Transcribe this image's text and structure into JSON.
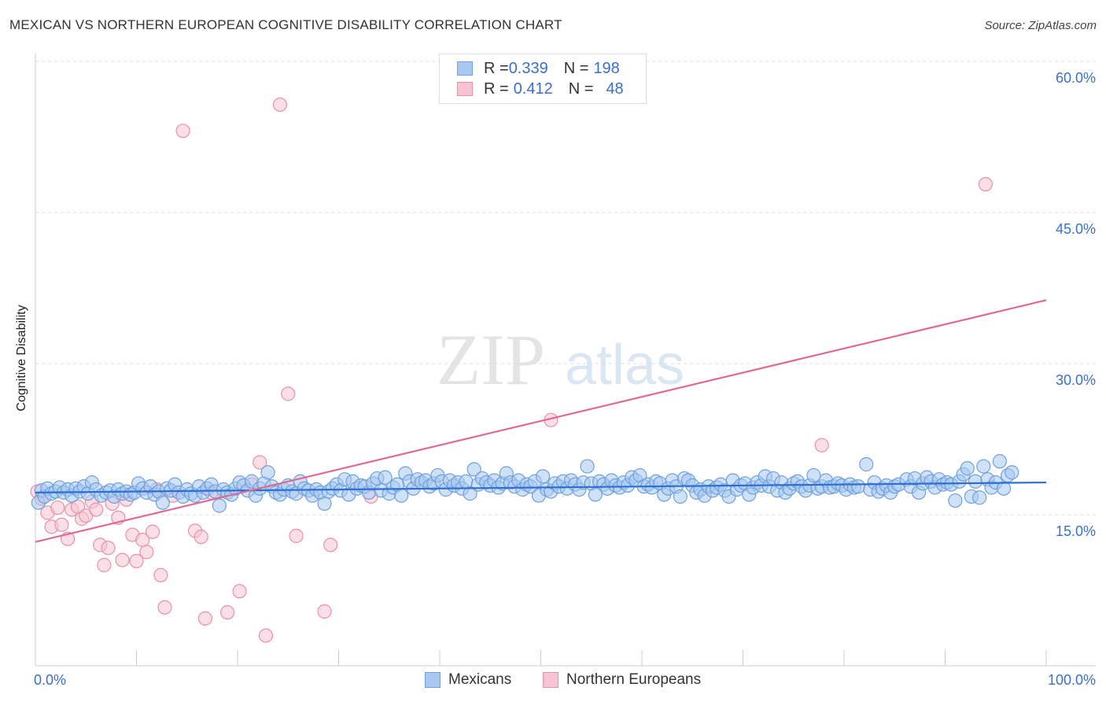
{
  "title": "MEXICAN VS NORTHERN EUROPEAN COGNITIVE DISABILITY CORRELATION CHART",
  "source": "Source: ZipAtlas.com",
  "watermark": {
    "part1": "ZIP",
    "part2": "atlas"
  },
  "legend_top": {
    "rows": [
      {
        "r_label": "R = ",
        "r_value": "0.339",
        "n_label": "N = ",
        "n_value": "198",
        "color": "#a8c8f0"
      },
      {
        "r_label": "R = ",
        "r_value": "0.412",
        "n_label": "N = ",
        "n_value": "48",
        "color": "#f8bccc"
      }
    ]
  },
  "colors": {
    "mexicans_fill": "#a8c8f0",
    "mexicans_stroke": "#6fa0dc",
    "mexicans_line": "#2e6fd0",
    "northern_fill": "#f8c4d2",
    "northern_stroke": "#e890aa",
    "northern_line": "#e06a96",
    "axis_text": "#3b6fc9",
    "grid": "#dddddd"
  },
  "chart_data": {
    "type": "scatter",
    "title": "MEXICAN VS NORTHERN EUROPEAN COGNITIVE DISABILITY CORRELATION CHART",
    "xlabel": "",
    "ylabel": "Cognitive Disability",
    "xlim": [
      0,
      100
    ],
    "ylim": [
      0,
      60
    ],
    "x_tick_labels": [
      "0.0%",
      "100.0%"
    ],
    "y_ticks": [
      15,
      30,
      45,
      60
    ],
    "y_tick_labels": [
      "15.0%",
      "30.0%",
      "45.0%",
      "60.0%"
    ],
    "grid": true,
    "legend_placement": "bottom",
    "series": [
      {
        "name": "Mexicans",
        "trendline": {
          "x": [
            0,
            100
          ],
          "y": [
            17.2,
            18.2
          ]
        },
        "points": [
          [
            0.3,
            16.2
          ],
          [
            0.6,
            17.4
          ],
          [
            0.9,
            16.8
          ],
          [
            1.2,
            17.6
          ],
          [
            1.6,
            17.1
          ],
          [
            2.0,
            17.3
          ],
          [
            2.4,
            17.7
          ],
          [
            2.8,
            17.2
          ],
          [
            3.2,
            17.5
          ],
          [
            3.6,
            16.9
          ],
          [
            4.0,
            17.6
          ],
          [
            4.4,
            17.3
          ],
          [
            4.8,
            17.8
          ],
          [
            5.2,
            17.1
          ],
          [
            5.6,
            18.2
          ],
          [
            6.0,
            17.5
          ],
          [
            6.5,
            16.9
          ],
          [
            7.0,
            17.2
          ],
          [
            7.4,
            17.4
          ],
          [
            7.8,
            16.8
          ],
          [
            8.2,
            17.5
          ],
          [
            8.6,
            17.1
          ],
          [
            9.0,
            17.3
          ],
          [
            9.4,
            17.0
          ],
          [
            9.8,
            17.2
          ],
          [
            10.2,
            18.1
          ],
          [
            10.6,
            17.6
          ],
          [
            11.0,
            17.2
          ],
          [
            11.4,
            17.8
          ],
          [
            11.8,
            17.0
          ],
          [
            12.2,
            17.3
          ],
          [
            12.6,
            16.2
          ],
          [
            13.0,
            17.6
          ],
          [
            13.4,
            17.4
          ],
          [
            13.8,
            18.0
          ],
          [
            14.2,
            17.2
          ],
          [
            14.6,
            16.8
          ],
          [
            15.0,
            17.5
          ],
          [
            15.4,
            17.1
          ],
          [
            15.8,
            16.9
          ],
          [
            16.2,
            17.8
          ],
          [
            16.6,
            17.2
          ],
          [
            17.0,
            17.6
          ],
          [
            17.4,
            18.0
          ],
          [
            17.8,
            17.3
          ],
          [
            18.2,
            15.9
          ],
          [
            18.6,
            17.5
          ],
          [
            19.0,
            17.2
          ],
          [
            19.4,
            17.0
          ],
          [
            19.8,
            17.6
          ],
          [
            20.2,
            18.2
          ],
          [
            20.6,
            17.9
          ],
          [
            21.0,
            17.4
          ],
          [
            21.4,
            18.3
          ],
          [
            21.8,
            16.9
          ],
          [
            22.2,
            17.6
          ],
          [
            22.6,
            18.1
          ],
          [
            23.0,
            19.2
          ],
          [
            23.4,
            17.8
          ],
          [
            23.8,
            17.2
          ],
          [
            24.2,
            17.0
          ],
          [
            24.6,
            17.5
          ],
          [
            25.0,
            17.9
          ],
          [
            25.4,
            17.3
          ],
          [
            25.8,
            17.1
          ],
          [
            26.2,
            18.3
          ],
          [
            26.6,
            17.6
          ],
          [
            27.0,
            17.4
          ],
          [
            27.4,
            16.9
          ],
          [
            27.8,
            17.5
          ],
          [
            28.2,
            17.2
          ],
          [
            28.6,
            16.1
          ],
          [
            29.0,
            17.3
          ],
          [
            29.4,
            17.6
          ],
          [
            29.8,
            18.0
          ],
          [
            30.2,
            17.4
          ],
          [
            30.6,
            18.5
          ],
          [
            31.0,
            17.0
          ],
          [
            31.4,
            18.3
          ],
          [
            31.8,
            17.6
          ],
          [
            32.2,
            17.9
          ],
          [
            32.6,
            17.8
          ],
          [
            33.0,
            17.2
          ],
          [
            33.4,
            18.1
          ],
          [
            33.8,
            18.6
          ],
          [
            34.2,
            17.4
          ],
          [
            34.6,
            18.7
          ],
          [
            35.0,
            17.1
          ],
          [
            35.4,
            17.7
          ],
          [
            35.8,
            18.0
          ],
          [
            36.2,
            16.9
          ],
          [
            36.6,
            19.1
          ],
          [
            37.0,
            18.3
          ],
          [
            37.4,
            17.6
          ],
          [
            37.8,
            18.5
          ],
          [
            38.2,
            18.2
          ],
          [
            38.6,
            18.4
          ],
          [
            39.0,
            17.8
          ],
          [
            39.4,
            18.1
          ],
          [
            39.8,
            18.9
          ],
          [
            40.2,
            18.3
          ],
          [
            40.6,
            17.5
          ],
          [
            41.0,
            18.4
          ],
          [
            41.4,
            17.9
          ],
          [
            41.8,
            18.2
          ],
          [
            42.2,
            17.6
          ],
          [
            42.6,
            18.3
          ],
          [
            43.0,
            17.1
          ],
          [
            43.4,
            19.5
          ],
          [
            43.8,
            18.0
          ],
          [
            44.2,
            18.6
          ],
          [
            44.6,
            18.2
          ],
          [
            45.0,
            17.9
          ],
          [
            45.4,
            18.4
          ],
          [
            45.8,
            17.7
          ],
          [
            46.2,
            18.1
          ],
          [
            46.6,
            19.1
          ],
          [
            47.0,
            18.2
          ],
          [
            47.4,
            17.8
          ],
          [
            47.8,
            18.4
          ],
          [
            48.2,
            17.5
          ],
          [
            48.6,
            18.0
          ],
          [
            49.0,
            17.8
          ],
          [
            49.4,
            18.3
          ],
          [
            49.8,
            16.9
          ],
          [
            50.2,
            18.8
          ],
          [
            50.6,
            17.5
          ],
          [
            51.0,
            17.3
          ],
          [
            51.4,
            18.1
          ],
          [
            51.8,
            17.8
          ],
          [
            52.2,
            18.3
          ],
          [
            52.6,
            17.6
          ],
          [
            53.0,
            18.4
          ],
          [
            53.4,
            18.0
          ],
          [
            53.8,
            17.5
          ],
          [
            54.2,
            18.2
          ],
          [
            54.6,
            19.8
          ],
          [
            55.0,
            18.1
          ],
          [
            55.4,
            17.0
          ],
          [
            55.8,
            18.3
          ],
          [
            56.2,
            18.0
          ],
          [
            56.6,
            17.6
          ],
          [
            57.0,
            18.4
          ],
          [
            57.4,
            17.9
          ],
          [
            57.8,
            17.7
          ],
          [
            58.2,
            18.2
          ],
          [
            58.6,
            17.9
          ],
          [
            59.0,
            18.7
          ],
          [
            59.4,
            18.4
          ],
          [
            59.8,
            18.9
          ],
          [
            60.2,
            17.8
          ],
          [
            60.6,
            18.0
          ],
          [
            61.0,
            17.7
          ],
          [
            61.4,
            18.3
          ],
          [
            61.8,
            18.1
          ],
          [
            62.2,
            17.0
          ],
          [
            62.6,
            17.6
          ],
          [
            63.0,
            18.4
          ],
          [
            63.4,
            17.8
          ],
          [
            63.8,
            16.8
          ],
          [
            64.2,
            18.6
          ],
          [
            64.6,
            18.4
          ],
          [
            65.0,
            17.9
          ],
          [
            65.4,
            17.2
          ],
          [
            65.8,
            17.5
          ],
          [
            66.2,
            16.9
          ],
          [
            66.6,
            17.8
          ],
          [
            67.0,
            17.4
          ],
          [
            67.4,
            17.7
          ],
          [
            67.8,
            18.0
          ],
          [
            68.2,
            17.4
          ],
          [
            68.6,
            16.8
          ],
          [
            69.0,
            18.4
          ],
          [
            69.4,
            17.5
          ],
          [
            69.8,
            17.9
          ],
          [
            70.2,
            18.1
          ],
          [
            70.6,
            17.0
          ],
          [
            71.0,
            17.7
          ],
          [
            71.4,
            18.2
          ],
          [
            71.8,
            17.9
          ],
          [
            72.2,
            18.8
          ],
          [
            72.6,
            17.8
          ],
          [
            73.0,
            18.6
          ],
          [
            73.4,
            17.4
          ],
          [
            73.8,
            18.2
          ],
          [
            74.2,
            17.2
          ],
          [
            74.6,
            17.6
          ],
          [
            75.0,
            18.1
          ],
          [
            75.4,
            18.3
          ],
          [
            75.8,
            17.8
          ],
          [
            76.2,
            17.4
          ],
          [
            76.6,
            17.9
          ],
          [
            77.0,
            18.9
          ],
          [
            77.4,
            17.6
          ],
          [
            77.8,
            17.8
          ],
          [
            78.2,
            18.4
          ],
          [
            78.6,
            17.7
          ],
          [
            79.0,
            17.8
          ],
          [
            79.4,
            18.1
          ],
          [
            79.8,
            17.9
          ],
          [
            80.2,
            17.5
          ],
          [
            80.6,
            18.0
          ],
          [
            81.0,
            17.7
          ],
          [
            81.4,
            17.8
          ],
          [
            82.2,
            20.0
          ],
          [
            82.6,
            17.5
          ],
          [
            83.0,
            18.2
          ],
          [
            83.4,
            17.3
          ],
          [
            83.8,
            17.6
          ],
          [
            84.2,
            17.9
          ],
          [
            84.6,
            17.2
          ],
          [
            85.0,
            17.8
          ],
          [
            85.4,
            18.0
          ],
          [
            86.2,
            18.5
          ],
          [
            86.6,
            17.8
          ],
          [
            87.0,
            18.6
          ],
          [
            87.4,
            17.2
          ],
          [
            87.8,
            18.1
          ],
          [
            88.2,
            18.7
          ],
          [
            88.6,
            18.3
          ],
          [
            89.0,
            17.7
          ],
          [
            89.4,
            18.5
          ],
          [
            89.8,
            18.0
          ],
          [
            90.2,
            18.2
          ],
          [
            90.6,
            18.0
          ],
          [
            91.0,
            16.4
          ],
          [
            91.4,
            18.3
          ],
          [
            91.8,
            19.0
          ],
          [
            92.2,
            19.6
          ],
          [
            92.6,
            16.8
          ],
          [
            93.0,
            18.3
          ],
          [
            93.4,
            16.7
          ],
          [
            93.8,
            19.8
          ],
          [
            94.2,
            18.5
          ],
          [
            94.6,
            17.7
          ],
          [
            95.0,
            18.2
          ],
          [
            95.4,
            20.3
          ],
          [
            95.8,
            17.6
          ],
          [
            96.2,
            18.9
          ],
          [
            96.6,
            19.2
          ]
        ]
      },
      {
        "name": "Northern Europeans",
        "trendline": {
          "x": [
            0,
            100
          ],
          "y": [
            12.3,
            36.3
          ]
        },
        "points": [
          [
            0.2,
            17.3
          ],
          [
            0.6,
            16.6
          ],
          [
            1.2,
            15.2
          ],
          [
            1.6,
            13.8
          ],
          [
            2.2,
            15.7
          ],
          [
            2.6,
            14.0
          ],
          [
            3.2,
            12.6
          ],
          [
            3.6,
            15.5
          ],
          [
            4.2,
            15.8
          ],
          [
            4.6,
            14.6
          ],
          [
            5.0,
            14.9
          ],
          [
            5.6,
            16.3
          ],
          [
            6.0,
            15.5
          ],
          [
            6.4,
            12.0
          ],
          [
            6.8,
            10.0
          ],
          [
            7.2,
            11.7
          ],
          [
            7.6,
            16.1
          ],
          [
            8.2,
            14.7
          ],
          [
            8.6,
            10.5
          ],
          [
            9.0,
            16.5
          ],
          [
            9.6,
            13.0
          ],
          [
            10.0,
            10.4
          ],
          [
            10.6,
            12.5
          ],
          [
            11.0,
            11.3
          ],
          [
            11.6,
            13.3
          ],
          [
            12.0,
            17.5
          ],
          [
            12.4,
            9.0
          ],
          [
            12.8,
            5.8
          ],
          [
            13.6,
            16.9
          ],
          [
            14.6,
            53.1
          ],
          [
            15.8,
            13.4
          ],
          [
            16.4,
            12.8
          ],
          [
            16.8,
            4.7
          ],
          [
            17.4,
            17.2
          ],
          [
            19.0,
            5.3
          ],
          [
            20.2,
            7.4
          ],
          [
            21.4,
            18.0
          ],
          [
            22.2,
            20.2
          ],
          [
            22.8,
            3.0
          ],
          [
            24.2,
            55.7
          ],
          [
            25.0,
            27.0
          ],
          [
            25.8,
            12.9
          ],
          [
            28.6,
            5.4
          ],
          [
            29.2,
            12.0
          ],
          [
            33.2,
            16.8
          ],
          [
            51.0,
            24.4
          ],
          [
            77.8,
            21.9
          ],
          [
            94.0,
            47.8
          ]
        ]
      }
    ]
  },
  "bottom_legend": {
    "items": [
      "Mexicans",
      "Northern Europeans"
    ]
  }
}
